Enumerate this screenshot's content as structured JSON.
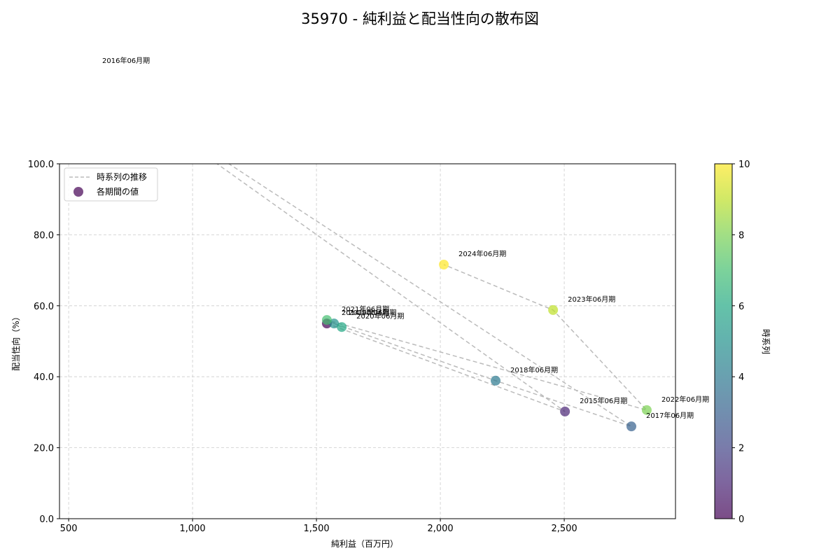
{
  "chart_data": {
    "type": "scatter",
    "title": "35970 - 純利益と配当性向の散布図",
    "xlabel": "純利益（百万円）",
    "ylabel": "配当性向（%）",
    "xlim": [
      463,
      2949
    ],
    "ylim": [
      0,
      100
    ],
    "xticks": [
      500,
      1000,
      1500,
      2000,
      2500
    ],
    "xtick_labels": [
      "500",
      "1,000",
      "1,500",
      "2,000",
      "2,500"
    ],
    "yticks": [
      0,
      20,
      40,
      60,
      80,
      100
    ],
    "ytick_labels": [
      "0.0",
      "20.0",
      "40.0",
      "60.0",
      "80.0",
      "100.0"
    ],
    "grid": true,
    "legend": {
      "position": "upper left",
      "entries": [
        {
          "label": "時系列の推移",
          "kind": "line-dashed",
          "color": "#bbbbbb"
        },
        {
          "label": "各期間の値",
          "kind": "marker",
          "color": "#440154"
        }
      ]
    },
    "colorbar": {
      "label": "時系列",
      "min": 0,
      "max": 10,
      "ticks": [
        0,
        2,
        4,
        6,
        8,
        10
      ],
      "colormap": "viridis"
    },
    "points": [
      {
        "label": "2014年06月期",
        "x": 1542,
        "y": 55.0,
        "t": 0
      },
      {
        "label": "2015年06月期",
        "x": 2503,
        "y": 30.2,
        "t": 1
      },
      {
        "label": "2016年06月期",
        "x": 576,
        "y": 126.0,
        "t": 2
      },
      {
        "label": "2017年06月期",
        "x": 2771,
        "y": 26.0,
        "t": 3
      },
      {
        "label": "2018年06月期",
        "x": 2223,
        "y": 38.9,
        "t": 4
      },
      {
        "label": "2019年06月期",
        "x": 1571,
        "y": 55.0,
        "t": 5
      },
      {
        "label": "2020年06月期",
        "x": 1602,
        "y": 54.0,
        "t": 6
      },
      {
        "label": "2021年06月期",
        "x": 1542,
        "y": 56.0,
        "t": 7
      },
      {
        "label": "2022年06月期",
        "x": 2833,
        "y": 30.6,
        "t": 8
      },
      {
        "label": "2023年06月期",
        "x": 2455,
        "y": 58.8,
        "t": 9
      },
      {
        "label": "2024年06月期",
        "x": 2014,
        "y": 71.6,
        "t": 10
      }
    ]
  },
  "colors": {
    "trend_line": "#bbbbbb",
    "grid": "#cccccc",
    "axis": "#000000"
  }
}
